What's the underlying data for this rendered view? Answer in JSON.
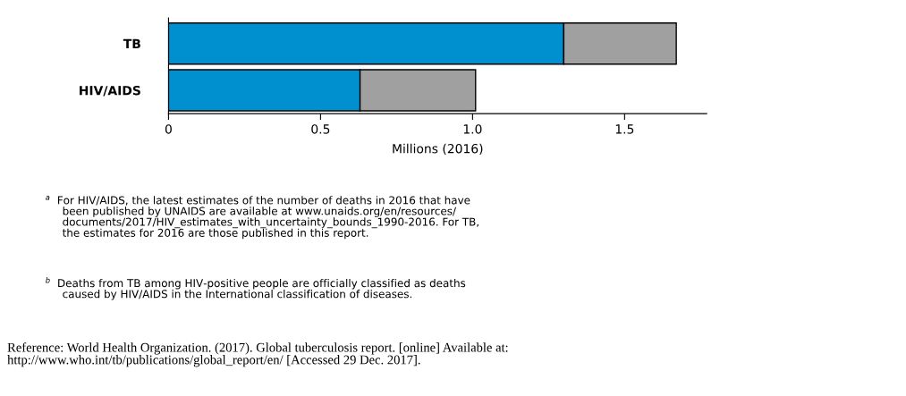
{
  "chart_data": {
    "type": "bar",
    "orientation": "horizontal",
    "stacked": true,
    "categories": [
      "TB",
      "HIV/AIDS"
    ],
    "series": [
      {
        "color": "#0090d0",
        "values": [
          1.3,
          0.63
        ]
      },
      {
        "color": "#a0a0a0",
        "values": [
          0.37,
          0.38
        ]
      }
    ],
    "xlim": [
      0,
      1.77
    ],
    "xticks": [
      0,
      0.5,
      {
        "value": 1.0,
        "label": "1.0"
      },
      1.5
    ],
    "xlabel": "Millions (2016)",
    "grid": false,
    "legend": false,
    "annotations": [
      "$^{a}$  For HIV/AIDS, the latest estimates of the number of deaths in 2016 that have\n     been published by UNAIDS are available at www.unaids.org/en/resources/\n     documents/2017/HIV_estimates_with_uncertainty_bounds_1990-2016. For TB,\n     the estimates for 2016 are those published in this report.",
      "$^{b}$  Deaths from TB among HIV-positive people are officially classified as deaths\n     caused by HIV/AIDS in the International classification of diseases.",
      "Reference: World Health Organization. (2017). Global tuberculosis report. [online] Available at:\nhttp://www.who.int/tb/publications/global_report/en/ [Accessed 29 Dec. 2017]."
    ]
  }
}
